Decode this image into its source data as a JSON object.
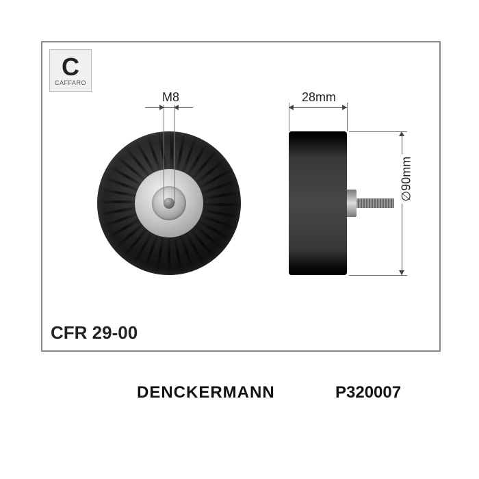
{
  "logo": {
    "letter": "C",
    "subtext": "CAFFARO"
  },
  "part_code": "CFR 29-00",
  "brand": "DENCKERMANN",
  "part_number": "P320007",
  "dimensions": {
    "bolt_thread": "M8",
    "width_mm": "28mm",
    "diameter_mm": "∅90mm"
  },
  "pulley": {
    "outer_diameter_mm": 90,
    "width_mm": 28,
    "bolt_thread": "M8",
    "body_color": "#1a1a1a",
    "hub_color": "#c8c8c8",
    "bolt_color": "#888888",
    "ridge_count": 36
  },
  "drawing": {
    "border_color": "#888888",
    "background": "#ffffff",
    "dim_line_color": "#444444",
    "label_fontsize": 18
  }
}
